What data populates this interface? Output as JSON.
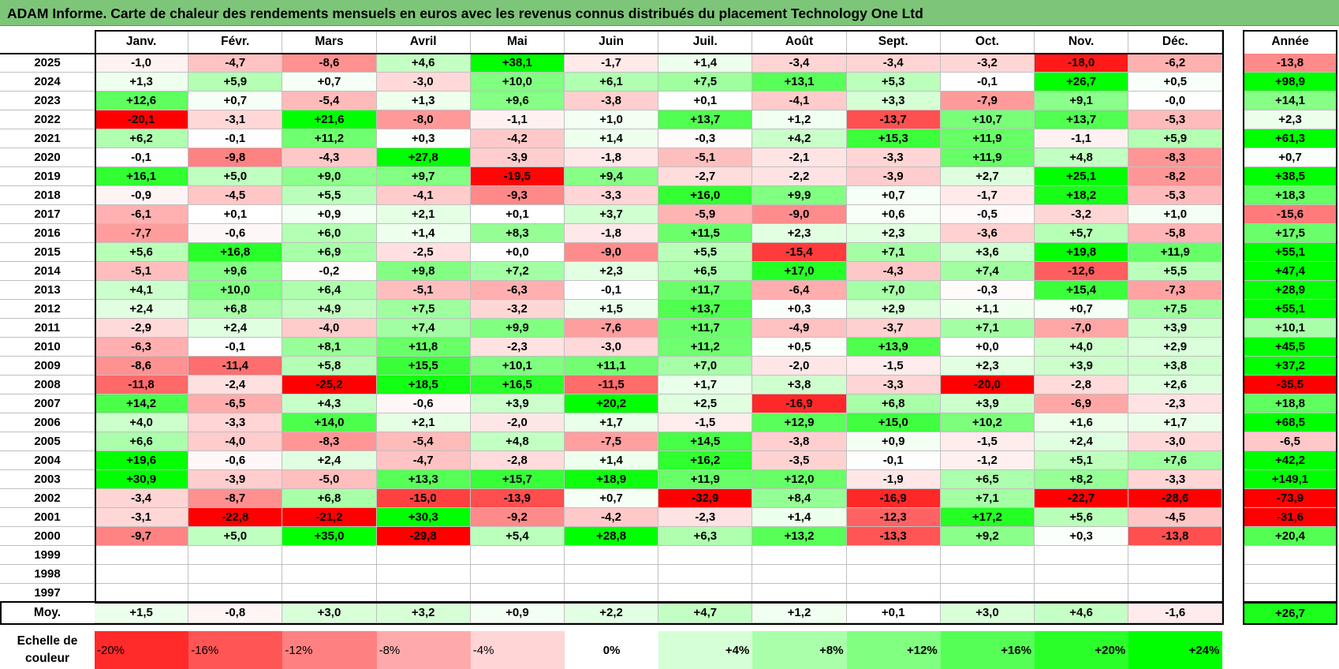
{
  "title": "ADAM Informe. Carte de chaleur des rendements mensuels en euros avec les revenus connus distribués du placement Technology One Ltd",
  "chart_data": {
    "type": "heatmap",
    "months": [
      "Janv.",
      "Févr.",
      "Mars",
      "Avril",
      "Mai",
      "Juin",
      "Juil.",
      "Août",
      "Sept.",
      "Oct.",
      "Nov.",
      "Déc."
    ],
    "year_header": "Année",
    "rows": [
      {
        "year": "2025",
        "values": [
          "-1,0",
          "-4,7",
          "-8,6",
          "+4,6",
          "+38,1",
          "-1,7",
          "+1,4",
          "-3,4",
          "-3,4",
          "-3,2",
          "-18,0",
          "-6,2"
        ],
        "annual": "-13,8"
      },
      {
        "year": "2024",
        "values": [
          "+1,3",
          "+5,9",
          "+0,7",
          "-3,0",
          "+10,0",
          "+6,1",
          "+7,5",
          "+13,1",
          "+5,3",
          "-0,1",
          "+26,7",
          "+0,5"
        ],
        "annual": "+98,9"
      },
      {
        "year": "2023",
        "values": [
          "+12,6",
          "+0,7",
          "-5,4",
          "+1,3",
          "+9,6",
          "-3,8",
          "+0,1",
          "-4,1",
          "+3,3",
          "-7,9",
          "+9,1",
          "-0,0"
        ],
        "annual": "+14,1"
      },
      {
        "year": "2022",
        "values": [
          "-20,1",
          "-3,1",
          "+21,6",
          "-8,0",
          "-1,1",
          "+1,0",
          "+13,7",
          "+1,2",
          "-13,7",
          "+10,7",
          "+13,7",
          "-5,3"
        ],
        "annual": "+2,3"
      },
      {
        "year": "2021",
        "values": [
          "+6,2",
          "-0,1",
          "+11,2",
          "+0,3",
          "-4,2",
          "+1,4",
          "-0,3",
          "+4,2",
          "+15,3",
          "+11,9",
          "-1,1",
          "+5,9"
        ],
        "annual": "+61,3"
      },
      {
        "year": "2020",
        "values": [
          "-0,1",
          "-9,8",
          "-4,3",
          "+27,8",
          "-3,9",
          "-1,8",
          "-5,1",
          "-2,1",
          "-3,3",
          "+11,9",
          "+4,8",
          "-8,3"
        ],
        "annual": "+0,7"
      },
      {
        "year": "2019",
        "values": [
          "+16,1",
          "+5,0",
          "+9,0",
          "+9,7",
          "-19,5",
          "+9,4",
          "-2,7",
          "-2,2",
          "-3,9",
          "+2,7",
          "+25,1",
          "-8,2"
        ],
        "annual": "+38,5"
      },
      {
        "year": "2018",
        "values": [
          "-0,9",
          "-4,5",
          "+5,5",
          "-4,1",
          "-9,3",
          "-3,3",
          "+16,0",
          "+9,9",
          "+0,7",
          "-1,7",
          "+18,2",
          "-5,3"
        ],
        "annual": "+18,3"
      },
      {
        "year": "2017",
        "values": [
          "-6,1",
          "+0,1",
          "+0,9",
          "+2,1",
          "+0,1",
          "+3,7",
          "-5,9",
          "-9,0",
          "+0,6",
          "-0,5",
          "-3,2",
          "+1,0"
        ],
        "annual": "-15,6"
      },
      {
        "year": "2016",
        "values": [
          "-7,7",
          "-0,6",
          "+6,0",
          "+1,4",
          "+8,3",
          "-1,8",
          "+11,5",
          "+2,3",
          "+2,3",
          "-3,6",
          "+5,7",
          "-5,8"
        ],
        "annual": "+17,5"
      },
      {
        "year": "2015",
        "values": [
          "+5,6",
          "+16,8",
          "+6,9",
          "-2,5",
          "+0,0",
          "-9,0",
          "+5,5",
          "-15,4",
          "+7,1",
          "+3,6",
          "+19,8",
          "+11,9"
        ],
        "annual": "+55,1"
      },
      {
        "year": "2014",
        "values": [
          "-5,1",
          "+9,6",
          "-0,2",
          "+9,8",
          "+7,2",
          "+2,3",
          "+6,5",
          "+17,0",
          "-4,3",
          "+7,4",
          "-12,6",
          "+5,5"
        ],
        "annual": "+47,4"
      },
      {
        "year": "2013",
        "values": [
          "+4,1",
          "+10,0",
          "+6,4",
          "-5,1",
          "-6,3",
          "-0,1",
          "+11,7",
          "-6,4",
          "+7,0",
          "-0,3",
          "+15,4",
          "-7,3"
        ],
        "annual": "+28,9"
      },
      {
        "year": "2012",
        "values": [
          "+2,4",
          "+6,8",
          "+4,9",
          "+7,5",
          "-3,2",
          "+1,5",
          "+13,7",
          "+0,3",
          "+2,9",
          "+1,1",
          "+0,7",
          "+7,5"
        ],
        "annual": "+55,1"
      },
      {
        "year": "2011",
        "values": [
          "-2,9",
          "+2,4",
          "-4,0",
          "+7,4",
          "+9,9",
          "-7,6",
          "+11,7",
          "-4,9",
          "-3,7",
          "+7,1",
          "-7,0",
          "+3,9"
        ],
        "annual": "+10,1"
      },
      {
        "year": "2010",
        "values": [
          "-6,3",
          "-0,1",
          "+8,1",
          "+11,8",
          "-2,3",
          "-3,0",
          "+11,2",
          "+0,5",
          "+13,9",
          "+0,0",
          "+4,0",
          "+2,9"
        ],
        "annual": "+45,5"
      },
      {
        "year": "2009",
        "values": [
          "-8,6",
          "-11,4",
          "+5,8",
          "+15,5",
          "+10,1",
          "+11,1",
          "+7,0",
          "-2,0",
          "-1,5",
          "+2,3",
          "+3,9",
          "+3,8"
        ],
        "annual": "+37,2"
      },
      {
        "year": "2008",
        "values": [
          "-11,8",
          "-2,4",
          "-25,2",
          "+18,5",
          "+16,5",
          "-11,5",
          "+1,7",
          "+3,8",
          "-3,3",
          "-20,0",
          "-2,8",
          "+2,6"
        ],
        "annual": "-35,5"
      },
      {
        "year": "2007",
        "values": [
          "+14,2",
          "-6,5",
          "+4,3",
          "-0,6",
          "+3,9",
          "+20,2",
          "+2,5",
          "-16,9",
          "+6,8",
          "+3,9",
          "-6,9",
          "-2,3"
        ],
        "annual": "+18,8"
      },
      {
        "year": "2006",
        "values": [
          "+4,0",
          "-3,3",
          "+14,0",
          "+2,1",
          "-2,0",
          "+1,7",
          "-1,5",
          "+12,9",
          "+15,0",
          "+10,2",
          "+1,6",
          "+1,7"
        ],
        "annual": "+68,5"
      },
      {
        "year": "2005",
        "values": [
          "+6,6",
          "-4,0",
          "-8,3",
          "-5,4",
          "+4,8",
          "-7,5",
          "+14,5",
          "-3,8",
          "+0,9",
          "-1,5",
          "+2,4",
          "-3,0"
        ],
        "annual": "-6,5"
      },
      {
        "year": "2004",
        "values": [
          "+19,6",
          "-0,6",
          "+2,4",
          "-4,7",
          "-2,8",
          "+1,4",
          "+16,2",
          "-3,5",
          "-0,1",
          "-1,2",
          "+5,1",
          "+7,6"
        ],
        "annual": "+42,2"
      },
      {
        "year": "2003",
        "values": [
          "+30,9",
          "-3,9",
          "-5,0",
          "+13,3",
          "+15,7",
          "+18,9",
          "+11,9",
          "+12,0",
          "-1,9",
          "+6,5",
          "+8,2",
          "-3,3"
        ],
        "annual": "+149,1"
      },
      {
        "year": "2002",
        "values": [
          "-3,4",
          "-8,7",
          "+6,8",
          "-15,0",
          "-13,9",
          "+0,7",
          "-32,9",
          "+8,4",
          "-16,9",
          "+7,1",
          "-22,7",
          "-28,6"
        ],
        "annual": "-73,9"
      },
      {
        "year": "2001",
        "values": [
          "-3,1",
          "-22,8",
          "-21,2",
          "+30,3",
          "-9,2",
          "-4,2",
          "-2,3",
          "+1,4",
          "-12,3",
          "+17,2",
          "+5,6",
          "-4,5"
        ],
        "annual": "-31,6"
      },
      {
        "year": "2000",
        "values": [
          "-9,7",
          "+5,0",
          "+35,0",
          "-29,8",
          "+5,4",
          "+28,8",
          "+6,3",
          "+13,2",
          "-13,3",
          "+9,2",
          "+0,3",
          "-13,8"
        ],
        "annual": "+20,4"
      },
      {
        "year": "1999",
        "values": [
          "",
          "",
          "",
          "",
          "",
          "",
          "",
          "",
          "",
          "",
          "",
          ""
        ],
        "annual": ""
      },
      {
        "year": "1998",
        "values": [
          "",
          "",
          "",
          "",
          "",
          "",
          "",
          "",
          "",
          "",
          "",
          ""
        ],
        "annual": ""
      },
      {
        "year": "1997",
        "values": [
          "",
          "",
          "",
          "",
          "",
          "",
          "",
          "",
          "",
          "",
          "",
          ""
        ],
        "annual": ""
      }
    ],
    "average": {
      "label": "Moy.",
      "values": [
        "+1,5",
        "-0,8",
        "+3,0",
        "+3,2",
        "+0,9",
        "+2,2",
        "+4,7",
        "+1,2",
        "+0,1",
        "+3,0",
        "+4,6",
        "-1,6"
      ],
      "annual": "+26,7"
    },
    "color_scale": {
      "label": "Echelle de couleur",
      "steps": [
        {
          "label": "-20%",
          "value": -20
        },
        {
          "label": "-16%",
          "value": -16
        },
        {
          "label": "-12%",
          "value": -12
        },
        {
          "label": "-8%",
          "value": -8
        },
        {
          "label": "-4%",
          "value": -4
        },
        {
          "label": "0%",
          "value": 0
        },
        {
          "label": "+4%",
          "value": 4
        },
        {
          "label": "+8%",
          "value": 8
        },
        {
          "label": "+12%",
          "value": 12
        },
        {
          "label": "+16%",
          "value": 16
        },
        {
          "label": "+20%",
          "value": 20
        },
        {
          "label": "+24%",
          "value": 24
        }
      ]
    },
    "colors": {
      "negative": "#ff0000",
      "neutral": "#ffffff",
      "positive": "#00ff00",
      "title_bg": "#7dc578"
    }
  }
}
